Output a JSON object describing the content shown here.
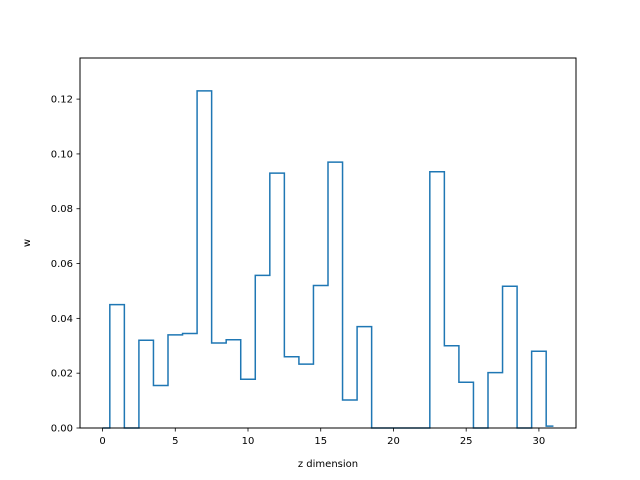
{
  "chart_data": {
    "type": "line",
    "drawstyle": "steps-mid",
    "title": "",
    "xlabel": "z dimension",
    "ylabel": "w",
    "xlim": [
      -1.55,
      32.55
    ],
    "ylim": [
      0.0,
      0.135
    ],
    "xticks": [
      0,
      5,
      10,
      15,
      20,
      25,
      30
    ],
    "yticks": [
      0.0,
      0.02,
      0.04,
      0.06,
      0.08,
      0.1,
      0.12
    ],
    "ytick_labels": [
      "0.00",
      "0.02",
      "0.04",
      "0.06",
      "0.08",
      "0.10",
      "0.12"
    ],
    "grid": false,
    "series": [
      {
        "color": "#1f77b4",
        "x": [
          0,
          1,
          2,
          3,
          4,
          5,
          6,
          7,
          8,
          9,
          10,
          11,
          12,
          13,
          14,
          15,
          16,
          17,
          18,
          19,
          20,
          21,
          22,
          23,
          24,
          25,
          26,
          27,
          28,
          29,
          30,
          31
        ],
        "y": [
          0.0,
          0.045,
          0.0,
          0.032,
          0.0155,
          0.034,
          0.0345,
          0.123,
          0.031,
          0.0322,
          0.0178,
          0.0557,
          0.093,
          0.026,
          0.0233,
          0.052,
          0.097,
          0.0102,
          0.037,
          0.0,
          0.0,
          0.0,
          0.0,
          0.0935,
          0.03,
          0.0167,
          0.0,
          0.0202,
          0.0517,
          0.0,
          0.028,
          0.0007
        ]
      }
    ]
  }
}
